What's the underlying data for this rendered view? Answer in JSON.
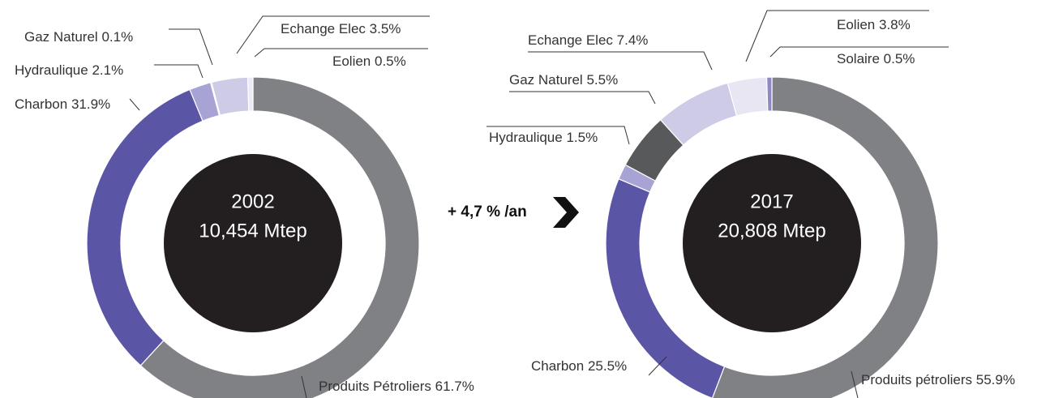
{
  "annotation": "+ 4,7 % /an",
  "chart_data": [
    {
      "type": "donut",
      "title": "2002",
      "subtitle": "10,454 Mtep",
      "categories": [
        "Produits Pétroliers",
        "Charbon",
        "Hydraulique",
        "Gaz Naturel",
        "Echange Elec",
        "Eolien"
      ],
      "values": [
        61.7,
        31.9,
        2.1,
        0.1,
        3.5,
        0.5
      ],
      "value_labels": [
        "61.7%",
        "31.9%",
        "2.1%",
        "0.1%",
        "3.5%",
        "0.5%"
      ],
      "colors": [
        "#808185",
        "#5b55a6",
        "#a7a3d4",
        "#3e3e40",
        "#cdcbe6",
        "#eceaf5"
      ]
    },
    {
      "type": "donut",
      "title": "2017",
      "subtitle": "20,808 Mtep",
      "categories": [
        "Produits pétroliers",
        "Charbon",
        "Hydraulique",
        "Gaz Naturel",
        "Echange Elec",
        "Eolien",
        "Solaire"
      ],
      "values": [
        55.9,
        25.5,
        1.5,
        5.5,
        7.4,
        3.8,
        0.5
      ],
      "value_labels": [
        "55.9%",
        "25.5%",
        "1.5%",
        "5.5%",
        "7.4%",
        "3.8%",
        "0.5%"
      ],
      "colors": [
        "#808185",
        "#5b55a6",
        "#a7a3d4",
        "#58595b",
        "#cdcbe6",
        "#e8e6f3",
        "#8c89c4"
      ]
    }
  ]
}
